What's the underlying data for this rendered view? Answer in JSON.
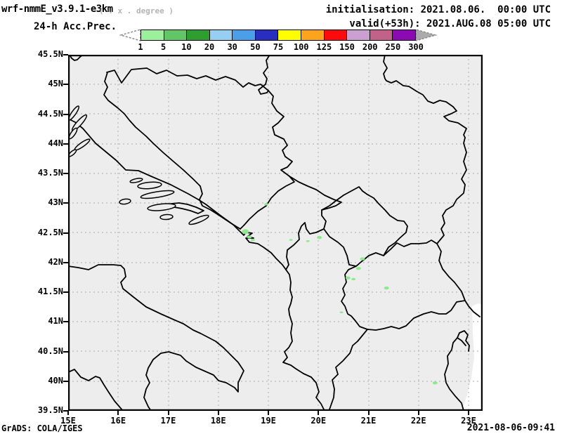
{
  "header": {
    "model_title": "wrf-nmmE_v3.9.1-e3km",
    "model_subtitle": "( . x . degree )",
    "product_label": "24-h Acc.Prec.",
    "init_label": "initialisation: 2021.08.06.  00:00 UTC",
    "valid_label": "valid(+53h): 2021.AUG.08 05:00 UTC"
  },
  "colorbar": {
    "tick_labels": [
      "1",
      "5",
      "10",
      "20",
      "30",
      "50",
      "75",
      "100",
      "125",
      "150",
      "200",
      "250",
      "300"
    ],
    "colors": [
      "#9cf09c",
      "#63c666",
      "#2f9e30",
      "#96cff2",
      "#4b9fe8",
      "#2a2ec0",
      "#ffff00",
      "#fca41c",
      "#fb0b0b",
      "#c9a0d0",
      "#c26288",
      "#8c0ab2"
    ],
    "left_arrow_color": "#ffffff",
    "right_arrow_color": "#ababab",
    "arrow_outline_color": "#8a8a8a"
  },
  "map": {
    "lat_labels": [
      "45.5N",
      "45N",
      "44.5N",
      "44N",
      "43.5N",
      "43N",
      "42.5N",
      "42N",
      "41.5N",
      "41N",
      "40.5N",
      "40N",
      "39.5N"
    ],
    "lon_labels": [
      "15E",
      "16E",
      "17E",
      "18E",
      "19E",
      "20E",
      "21E",
      "22E",
      "23E"
    ],
    "background_color": "#ededed",
    "coast_border_color": "#000000",
    "grid_color": "#b9b9b9",
    "nodata_color": "#ffffff",
    "precip_fill_color": "#8ce98c"
  },
  "footer": {
    "credit": "GrADS: COLA/IGES",
    "timestamp": "2021-08-06-09:41"
  },
  "chart_data": {
    "type": "heatmap",
    "title": "24-h Accumulated Precipitation (mm), wrf-nmmE v3.9.1 e3km",
    "initialisation": "2021.08.06. 00:00 UTC",
    "valid": "+53h, 2021.AUG.08 05:00 UTC",
    "scale_mm": [
      1,
      5,
      10,
      20,
      30,
      50,
      75,
      100,
      125,
      150,
      200,
      250,
      300
    ],
    "lon_range": [
      15.0,
      23.28
    ],
    "lat_range": [
      39.5,
      45.5
    ],
    "grid": true,
    "precip_spots": [
      {
        "lon": 18.96,
        "lat": 42.98,
        "value_mm": "1-5",
        "size": 4
      },
      {
        "lon": 18.54,
        "lat": 42.52,
        "value_mm": "1-5",
        "size": 8
      },
      {
        "lon": 18.62,
        "lat": 42.43,
        "value_mm": "1-5",
        "size": 5
      },
      {
        "lon": 18.69,
        "lat": 42.38,
        "value_mm": "1-5",
        "size": 4
      },
      {
        "lon": 20.02,
        "lat": 42.42,
        "value_mm": "1-5",
        "size": 5
      },
      {
        "lon": 19.79,
        "lat": 42.36,
        "value_mm": "1-5",
        "size": 3
      },
      {
        "lon": 19.45,
        "lat": 42.38,
        "value_mm": "1-5",
        "size": 3
      },
      {
        "lon": 20.88,
        "lat": 42.06,
        "value_mm": "1-5",
        "size": 5
      },
      {
        "lon": 20.8,
        "lat": 41.9,
        "value_mm": "1-5",
        "size": 5
      },
      {
        "lon": 20.59,
        "lat": 41.74,
        "value_mm": "1-5",
        "size": 5
      },
      {
        "lon": 20.7,
        "lat": 41.72,
        "value_mm": "1-5",
        "size": 4
      },
      {
        "lon": 21.36,
        "lat": 41.57,
        "value_mm": "1-5",
        "size": 5
      },
      {
        "lon": 20.46,
        "lat": 41.16,
        "value_mm": "1-5",
        "size": 3
      },
      {
        "lon": 22.33,
        "lat": 39.97,
        "value_mm": "1-5",
        "size": 5
      }
    ]
  }
}
